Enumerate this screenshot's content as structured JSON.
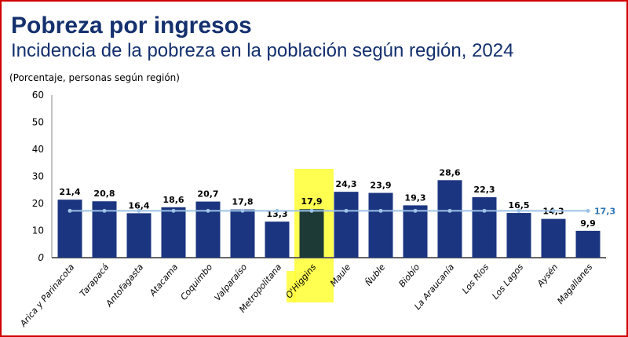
{
  "title": "Pobreza por ingresos",
  "subtitle": "Incidencia de la pobreza en la población según región, 2024",
  "unit_note": "(Porcentaje, personas según región)",
  "chart_data": {
    "type": "bar",
    "categories": [
      "Arica y Parinacota",
      "Tarapacá",
      "Antofagasta",
      "Atacama",
      "Coquimbo",
      "Valparaíso",
      "Metropolitana",
      "O'Higgins",
      "Maule",
      "Ñuble",
      "Biobío",
      "La Araucanía",
      "Los Ríos",
      "Los Lagos",
      "Aysén",
      "Magallanes"
    ],
    "values": [
      21.4,
      20.8,
      16.4,
      18.6,
      20.7,
      17.8,
      13.3,
      17.9,
      24.3,
      23.9,
      19.3,
      28.6,
      22.3,
      16.5,
      14.3,
      9.9
    ],
    "value_labels": [
      "21,4",
      "20,8",
      "16,4",
      "18,6",
      "20,7",
      "17,8",
      "13,3",
      "17,9",
      "24,3",
      "23,9",
      "19,3",
      "28,6",
      "22,3",
      "16,5",
      "14,3",
      "9,9"
    ],
    "reference_line": {
      "value": 17.3,
      "label": "17,3",
      "color": "#9dc3e6",
      "label_color": "#2e75b6"
    },
    "highlighted_category": "O'Higgins",
    "highlight_color": "#ffff33",
    "bar_color": "#1b3580",
    "highlight_bar_color": "#1e3a36",
    "ylim": [
      0,
      60
    ],
    "yticks": [
      0,
      10,
      20,
      30,
      40,
      50,
      60
    ],
    "grid": false,
    "xlabel": "",
    "ylabel": ""
  }
}
